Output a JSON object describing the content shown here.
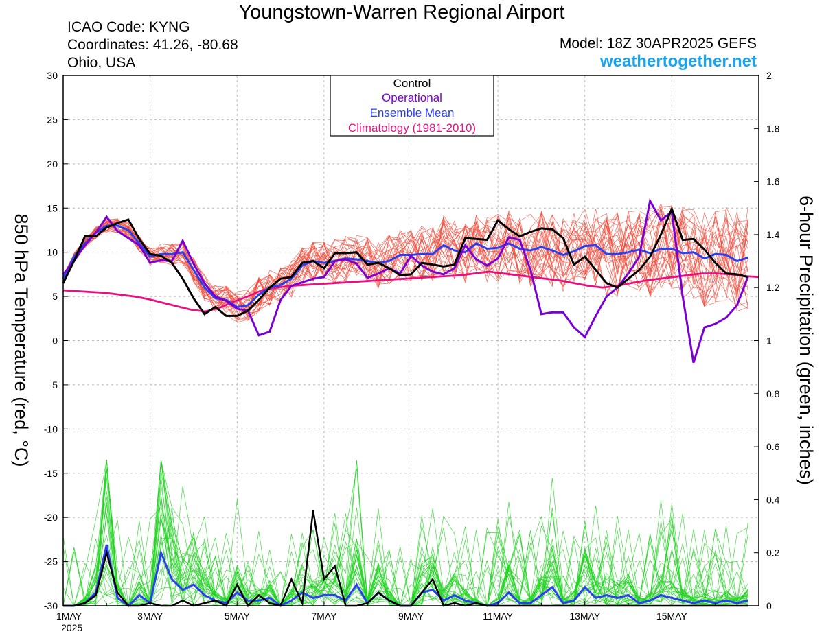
{
  "header": {
    "title": "Youngstown-Warren Regional Airport",
    "icao": "ICAO Code: KYNG",
    "coordinates": "Coordinates: 41.26, -80.68",
    "region": "Ohio, USA",
    "model": "Model: 18Z 30APR2025 GEFS",
    "site": "weathertogether.net"
  },
  "legend": {
    "control": "Control",
    "operational": "Operational",
    "ensemble_mean": "Ensemble Mean",
    "climatology": "Climatology (1981-2010)"
  },
  "colors": {
    "control": "#000000",
    "operational": "#7a00d4",
    "ensemble_mean": "#2a3ff0",
    "climatology": "#e8107f",
    "temp_members": "#f04a3a",
    "precip_members": "#22d422",
    "site": "#1aa3ee"
  },
  "chart_data": {
    "type": "line",
    "ylabel": "850 hPa Temperature (red, °C)",
    "y2label": "6-hour Precipitation (green, inches)",
    "ylim": [
      -30,
      30
    ],
    "y2lim": [
      0,
      2
    ],
    "y_ticks": [
      "30",
      "25",
      "20",
      "15",
      "10",
      "5",
      "0",
      "-5",
      "-10",
      "-15",
      "-20",
      "-25",
      "-30"
    ],
    "y2_ticks": [
      "2",
      "1.8",
      "1.6",
      "1.4",
      "1.2",
      "1",
      "0.8",
      "0.6",
      "0.4",
      "0.2",
      "0"
    ],
    "x_range_days": [
      1,
      17
    ],
    "x_ticks": [
      {
        "day": 1,
        "label": "1MAY",
        "sub": "2025"
      },
      {
        "day": 3,
        "label": "3MAY"
      },
      {
        "day": 5,
        "label": "5MAY"
      },
      {
        "day": 7,
        "label": "7MAY"
      },
      {
        "day": 9,
        "label": "9MAY"
      },
      {
        "day": 11,
        "label": "11MAY"
      },
      {
        "day": 13,
        "label": "13MAY"
      },
      {
        "day": 15,
        "label": "15MAY"
      }
    ],
    "step_days": 0.25,
    "temperature": {
      "control": [
        6.5,
        9,
        11.8,
        11.8,
        12.8,
        13.3,
        13.7,
        11.5,
        9.8,
        9.6,
        8.8,
        7,
        4.8,
        3,
        3.8,
        2.8,
        2.8,
        3.4,
        4.6,
        6,
        7,
        7.2,
        8.8,
        9,
        8.2,
        9.9,
        9.9,
        10,
        8.6,
        8.8,
        8.2,
        7.4,
        7.5,
        8.8,
        8.6,
        8.4,
        8.6,
        11.6,
        11.5,
        11.4,
        13.6,
        12.6,
        11.8,
        12.3,
        12.7,
        12.6,
        11.6,
        8.6,
        9.5,
        8,
        6.5,
        6,
        7,
        8,
        9.5,
        12,
        14.9,
        11.4,
        11.5,
        10.3,
        8.8,
        7.6,
        7.5,
        7.2
      ],
      "operational": [
        7.5,
        9,
        10.8,
        12.2,
        14,
        12.4,
        11.6,
        10.8,
        8.8,
        9.1,
        9,
        11.3,
        8.7,
        6.5,
        5,
        4.5,
        3.6,
        3.4,
        0.6,
        1,
        4.6,
        6.2,
        6.6,
        7,
        7.2,
        9,
        9.2,
        8.7,
        7.1,
        7.6,
        8.2,
        7.6,
        9.6,
        8.5,
        7.8,
        7.5,
        8.2,
        10.8,
        9.2,
        8.5,
        9.3,
        11.7,
        11.4,
        8,
        3,
        3.2,
        3.2,
        1.5,
        0.4,
        2.8,
        5,
        6,
        7.6,
        9.5,
        15.8,
        13.6,
        14.6,
        5,
        -2.5,
        1.5,
        1.9,
        2.6,
        4,
        7.2
      ],
      "ensemble_mean": [
        7,
        9.5,
        11,
        12.2,
        13,
        13,
        12.5,
        11,
        9.5,
        9.8,
        9.8,
        10,
        8,
        6,
        4.8,
        4.6,
        3.8,
        4,
        5.2,
        6,
        6.3,
        7,
        8.5,
        9,
        8.8,
        9,
        9.3,
        9.2,
        9,
        8.8,
        9,
        9.7,
        9.7,
        9.8,
        9.8,
        10.8,
        10.2,
        10,
        11,
        10.4,
        10.5,
        11,
        10.4,
        10.2,
        10.6,
        10.2,
        9.7,
        10.1,
        10.7,
        10.8,
        9.8,
        9.8,
        10,
        10.3,
        9.9,
        10.4,
        10.4,
        9.9,
        10,
        9.3,
        9.8,
        9.7,
        9,
        9.4
      ],
      "climatology": [
        5.7,
        5.6,
        5.5,
        5.4,
        5.2,
        5,
        4.7,
        4.3,
        3.9,
        3.5,
        3.3,
        3.7,
        4.4,
        5,
        5.7,
        6,
        6.2,
        6.3,
        6.4,
        6.5,
        6.6,
        6.7,
        6.8,
        6.9,
        7,
        7.1,
        7.2,
        7.3,
        7.4,
        7.6,
        7.8,
        7.6,
        7.4,
        7.2,
        7,
        6.8,
        6.5,
        6.2,
        6,
        6.2,
        6.5,
        6.8,
        7,
        7.2,
        7.4,
        7.6,
        7.6,
        7.5,
        7.3,
        7.2
      ]
    },
    "precipitation": {
      "control": [
        0,
        0,
        0.01,
        0.04,
        0.2,
        0.05,
        0,
        0,
        0.01,
        0,
        0,
        0.02,
        0,
        0.01,
        0.02,
        0,
        0.08,
        0,
        0.04,
        0.01,
        0,
        0.1,
        0.01,
        0.36,
        0.1,
        0.15,
        0,
        0,
        0.01,
        0.05,
        0.02,
        0,
        0,
        0.05,
        0.1,
        0,
        0.01,
        0,
        0.01,
        0,
        0,
        0,
        0,
        0,
        0,
        0,
        0,
        0,
        0,
        0,
        0,
        0,
        0,
        0,
        0,
        0,
        0,
        0,
        0,
        0,
        0,
        0,
        0,
        0
      ],
      "ensemble_mean": [
        0,
        0,
        0.01,
        0.05,
        0.23,
        0.03,
        0,
        0.04,
        0.01,
        0.2,
        0.1,
        0.06,
        0.08,
        0.04,
        0.02,
        0.01,
        0.05,
        0.02,
        0.02,
        0.03,
        0,
        0.02,
        0.05,
        0.03,
        0.04,
        0.04,
        0.02,
        0.08,
        0.01,
        0.05,
        0.02,
        0,
        0,
        0.05,
        0.06,
        0.02,
        0.04,
        0.02,
        0.01,
        0,
        0.01,
        0.05,
        0.01,
        0.01,
        0.04,
        0.07,
        0.01,
        0.02,
        0.07,
        0.03,
        0.04,
        0.03,
        0.04,
        0.01,
        0.02,
        0.04,
        0.03,
        0.02,
        0.01,
        0.02,
        0.01,
        0.02,
        0.01,
        0.02
      ]
    }
  }
}
